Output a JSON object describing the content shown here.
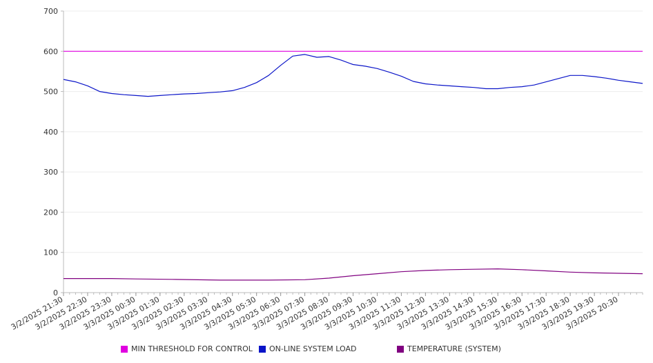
{
  "chart_data": {
    "type": "line",
    "title": "",
    "xlabel": "",
    "ylabel": "",
    "ylim": [
      0,
      700
    ],
    "yticks": [
      0,
      100,
      200,
      300,
      400,
      500,
      600,
      700
    ],
    "grid": true,
    "legend_position": "bottom",
    "x_range": [
      "3/2/2025 21:30",
      "3/3/2025 21:30"
    ],
    "x_tick_labels": [
      "3/2/2025 21:30",
      "3/2/2025 22:30",
      "3/2/2025 23:30",
      "3/3/2025 00:30",
      "3/3/2025 01:30",
      "3/3/2025 02:30",
      "3/3/2025 03:30",
      "3/3/2025 04:30",
      "3/3/2025 05:30",
      "3/3/2025 06:30",
      "3/3/2025 07:30",
      "3/3/2025 08:30",
      "3/3/2025 09:30",
      "3/3/2025 10:30",
      "3/3/2025 11:30",
      "3/3/2025 12:30",
      "3/3/2025 13:30",
      "3/3/2025 14:30",
      "3/3/2025 15:30",
      "3/3/2025 16:30",
      "3/3/2025 17:30",
      "3/3/2025 18:30",
      "3/3/2025 19:30",
      "3/3/2025 20:30"
    ],
    "series": [
      {
        "name": "MIN THRESHOLD FOR CONTROL",
        "color": "#e000e0",
        "points": [
          [
            "3/2/2025 21:30",
            600
          ],
          [
            "3/3/2025 21:30",
            600
          ]
        ]
      },
      {
        "name": "ON-LINE SYSTEM LOAD",
        "color": "#0a14c8",
        "points": [
          [
            "3/2/2025 21:30",
            530
          ],
          [
            "3/2/2025 22:00",
            524
          ],
          [
            "3/2/2025 22:30",
            514
          ],
          [
            "3/2/2025 23:00",
            500
          ],
          [
            "3/2/2025 23:30",
            495
          ],
          [
            "3/3/2025 00:00",
            492
          ],
          [
            "3/3/2025 00:30",
            490
          ],
          [
            "3/3/2025 01:00",
            488
          ],
          [
            "3/3/2025 01:30",
            490
          ],
          [
            "3/3/2025 02:00",
            492
          ],
          [
            "3/3/2025 02:30",
            494
          ],
          [
            "3/3/2025 03:00",
            495
          ],
          [
            "3/3/2025 03:30",
            497
          ],
          [
            "3/3/2025 04:00",
            499
          ],
          [
            "3/3/2025 04:30",
            502
          ],
          [
            "3/3/2025 05:00",
            510
          ],
          [
            "3/3/2025 05:30",
            522
          ],
          [
            "3/3/2025 06:00",
            540
          ],
          [
            "3/3/2025 06:30",
            565
          ],
          [
            "3/3/2025 07:00",
            588
          ],
          [
            "3/3/2025 07:30",
            592
          ],
          [
            "3/3/2025 08:00",
            585
          ],
          [
            "3/3/2025 08:30",
            587
          ],
          [
            "3/3/2025 09:00",
            578
          ],
          [
            "3/3/2025 09:30",
            567
          ],
          [
            "3/3/2025 10:00",
            563
          ],
          [
            "3/3/2025 10:30",
            557
          ],
          [
            "3/3/2025 11:00",
            548
          ],
          [
            "3/3/2025 11:30",
            538
          ],
          [
            "3/3/2025 12:00",
            525
          ],
          [
            "3/3/2025 12:30",
            519
          ],
          [
            "3/3/2025 13:00",
            516
          ],
          [
            "3/3/2025 13:30",
            514
          ],
          [
            "3/3/2025 14:00",
            512
          ],
          [
            "3/3/2025 14:30",
            510
          ],
          [
            "3/3/2025 15:00",
            507
          ],
          [
            "3/3/2025 15:30",
            507
          ],
          [
            "3/3/2025 16:00",
            510
          ],
          [
            "3/3/2025 16:30",
            512
          ],
          [
            "3/3/2025 17:00",
            516
          ],
          [
            "3/3/2025 17:30",
            524
          ],
          [
            "3/3/2025 18:00",
            532
          ],
          [
            "3/3/2025 18:30",
            540
          ],
          [
            "3/3/2025 19:00",
            540
          ],
          [
            "3/3/2025 19:30",
            537
          ],
          [
            "3/3/2025 20:00",
            533
          ],
          [
            "3/3/2025 20:30",
            528
          ],
          [
            "3/3/2025 21:00",
            524
          ],
          [
            "3/3/2025 21:30",
            520
          ]
        ]
      },
      {
        "name": "TEMPERATURE (SYSTEM)",
        "color": "#800080",
        "points": [
          [
            "3/2/2025 21:30",
            35
          ],
          [
            "3/2/2025 23:30",
            35
          ],
          [
            "3/3/2025 00:30",
            34
          ],
          [
            "3/3/2025 02:00",
            33
          ],
          [
            "3/3/2025 04:00",
            31
          ],
          [
            "3/3/2025 06:00",
            31
          ],
          [
            "3/3/2025 07:30",
            32
          ],
          [
            "3/3/2025 08:30",
            36
          ],
          [
            "3/3/2025 09:30",
            42
          ],
          [
            "3/3/2025 10:30",
            47
          ],
          [
            "3/3/2025 11:30",
            52
          ],
          [
            "3/3/2025 12:30",
            55
          ],
          [
            "3/3/2025 13:30",
            57
          ],
          [
            "3/3/2025 14:30",
            58
          ],
          [
            "3/3/2025 15:30",
            59
          ],
          [
            "3/3/2025 16:30",
            57
          ],
          [
            "3/3/2025 17:30",
            54
          ],
          [
            "3/3/2025 18:30",
            51
          ],
          [
            "3/3/2025 19:30",
            49
          ],
          [
            "3/3/2025 20:30",
            48
          ],
          [
            "3/3/2025 21:30",
            47
          ]
        ]
      }
    ]
  }
}
